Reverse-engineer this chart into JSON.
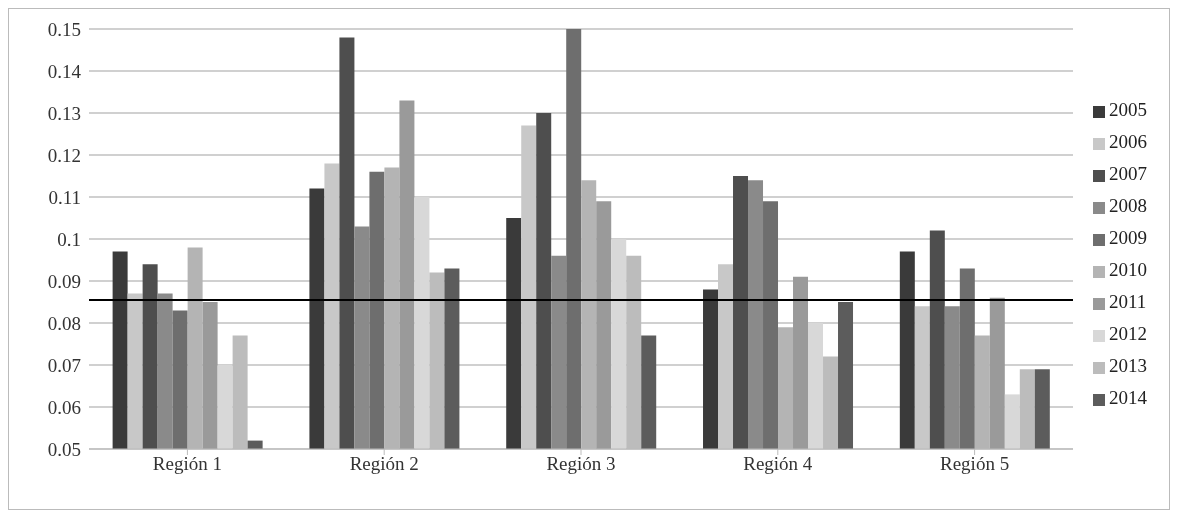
{
  "chart_data": {
    "type": "bar",
    "categories": [
      "Región 1",
      "Región 2",
      "Región 3",
      "Región 4",
      "Región 5"
    ],
    "series": [
      {
        "name": "2005",
        "color": "#3a3a3a",
        "values": [
          0.097,
          0.112,
          0.105,
          0.088,
          0.097
        ]
      },
      {
        "name": "2006",
        "color": "#c8c8c8",
        "values": [
          0.087,
          0.118,
          0.127,
          0.094,
          0.084
        ]
      },
      {
        "name": "2007",
        "color": "#4e4e4e",
        "values": [
          0.094,
          0.148,
          0.13,
          0.115,
          0.102
        ]
      },
      {
        "name": "2008",
        "color": "#8a8a8a",
        "values": [
          0.087,
          0.103,
          0.096,
          0.114,
          0.084
        ]
      },
      {
        "name": "2009",
        "color": "#6e6e6e",
        "values": [
          0.083,
          0.116,
          0.15,
          0.109,
          0.093
        ]
      },
      {
        "name": "2010",
        "color": "#b4b4b4",
        "values": [
          0.098,
          0.117,
          0.114,
          0.079,
          0.077
        ]
      },
      {
        "name": "2011",
        "color": "#9a9a9a",
        "values": [
          0.085,
          0.133,
          0.109,
          0.091,
          0.086
        ]
      },
      {
        "name": "2012",
        "color": "#d8d8d8",
        "values": [
          0.07,
          0.11,
          0.1,
          0.08,
          0.063
        ]
      },
      {
        "name": "2013",
        "color": "#bcbcbc",
        "values": [
          0.077,
          0.092,
          0.096,
          0.072,
          0.069
        ]
      },
      {
        "name": "2014",
        "color": "#5c5c5c",
        "values": [
          0.052,
          0.093,
          0.077,
          0.085,
          0.069
        ]
      }
    ],
    "ylim": [
      0.05,
      0.15
    ],
    "yticks": [
      0.05,
      0.06,
      0.07,
      0.08,
      0.09,
      0.1,
      0.11,
      0.12,
      0.13,
      0.14,
      0.15
    ],
    "grid": "y",
    "legend": "right",
    "ref_lines": [
      {
        "axis": "y",
        "value": 0.0855,
        "color": "#000000"
      }
    ]
  }
}
